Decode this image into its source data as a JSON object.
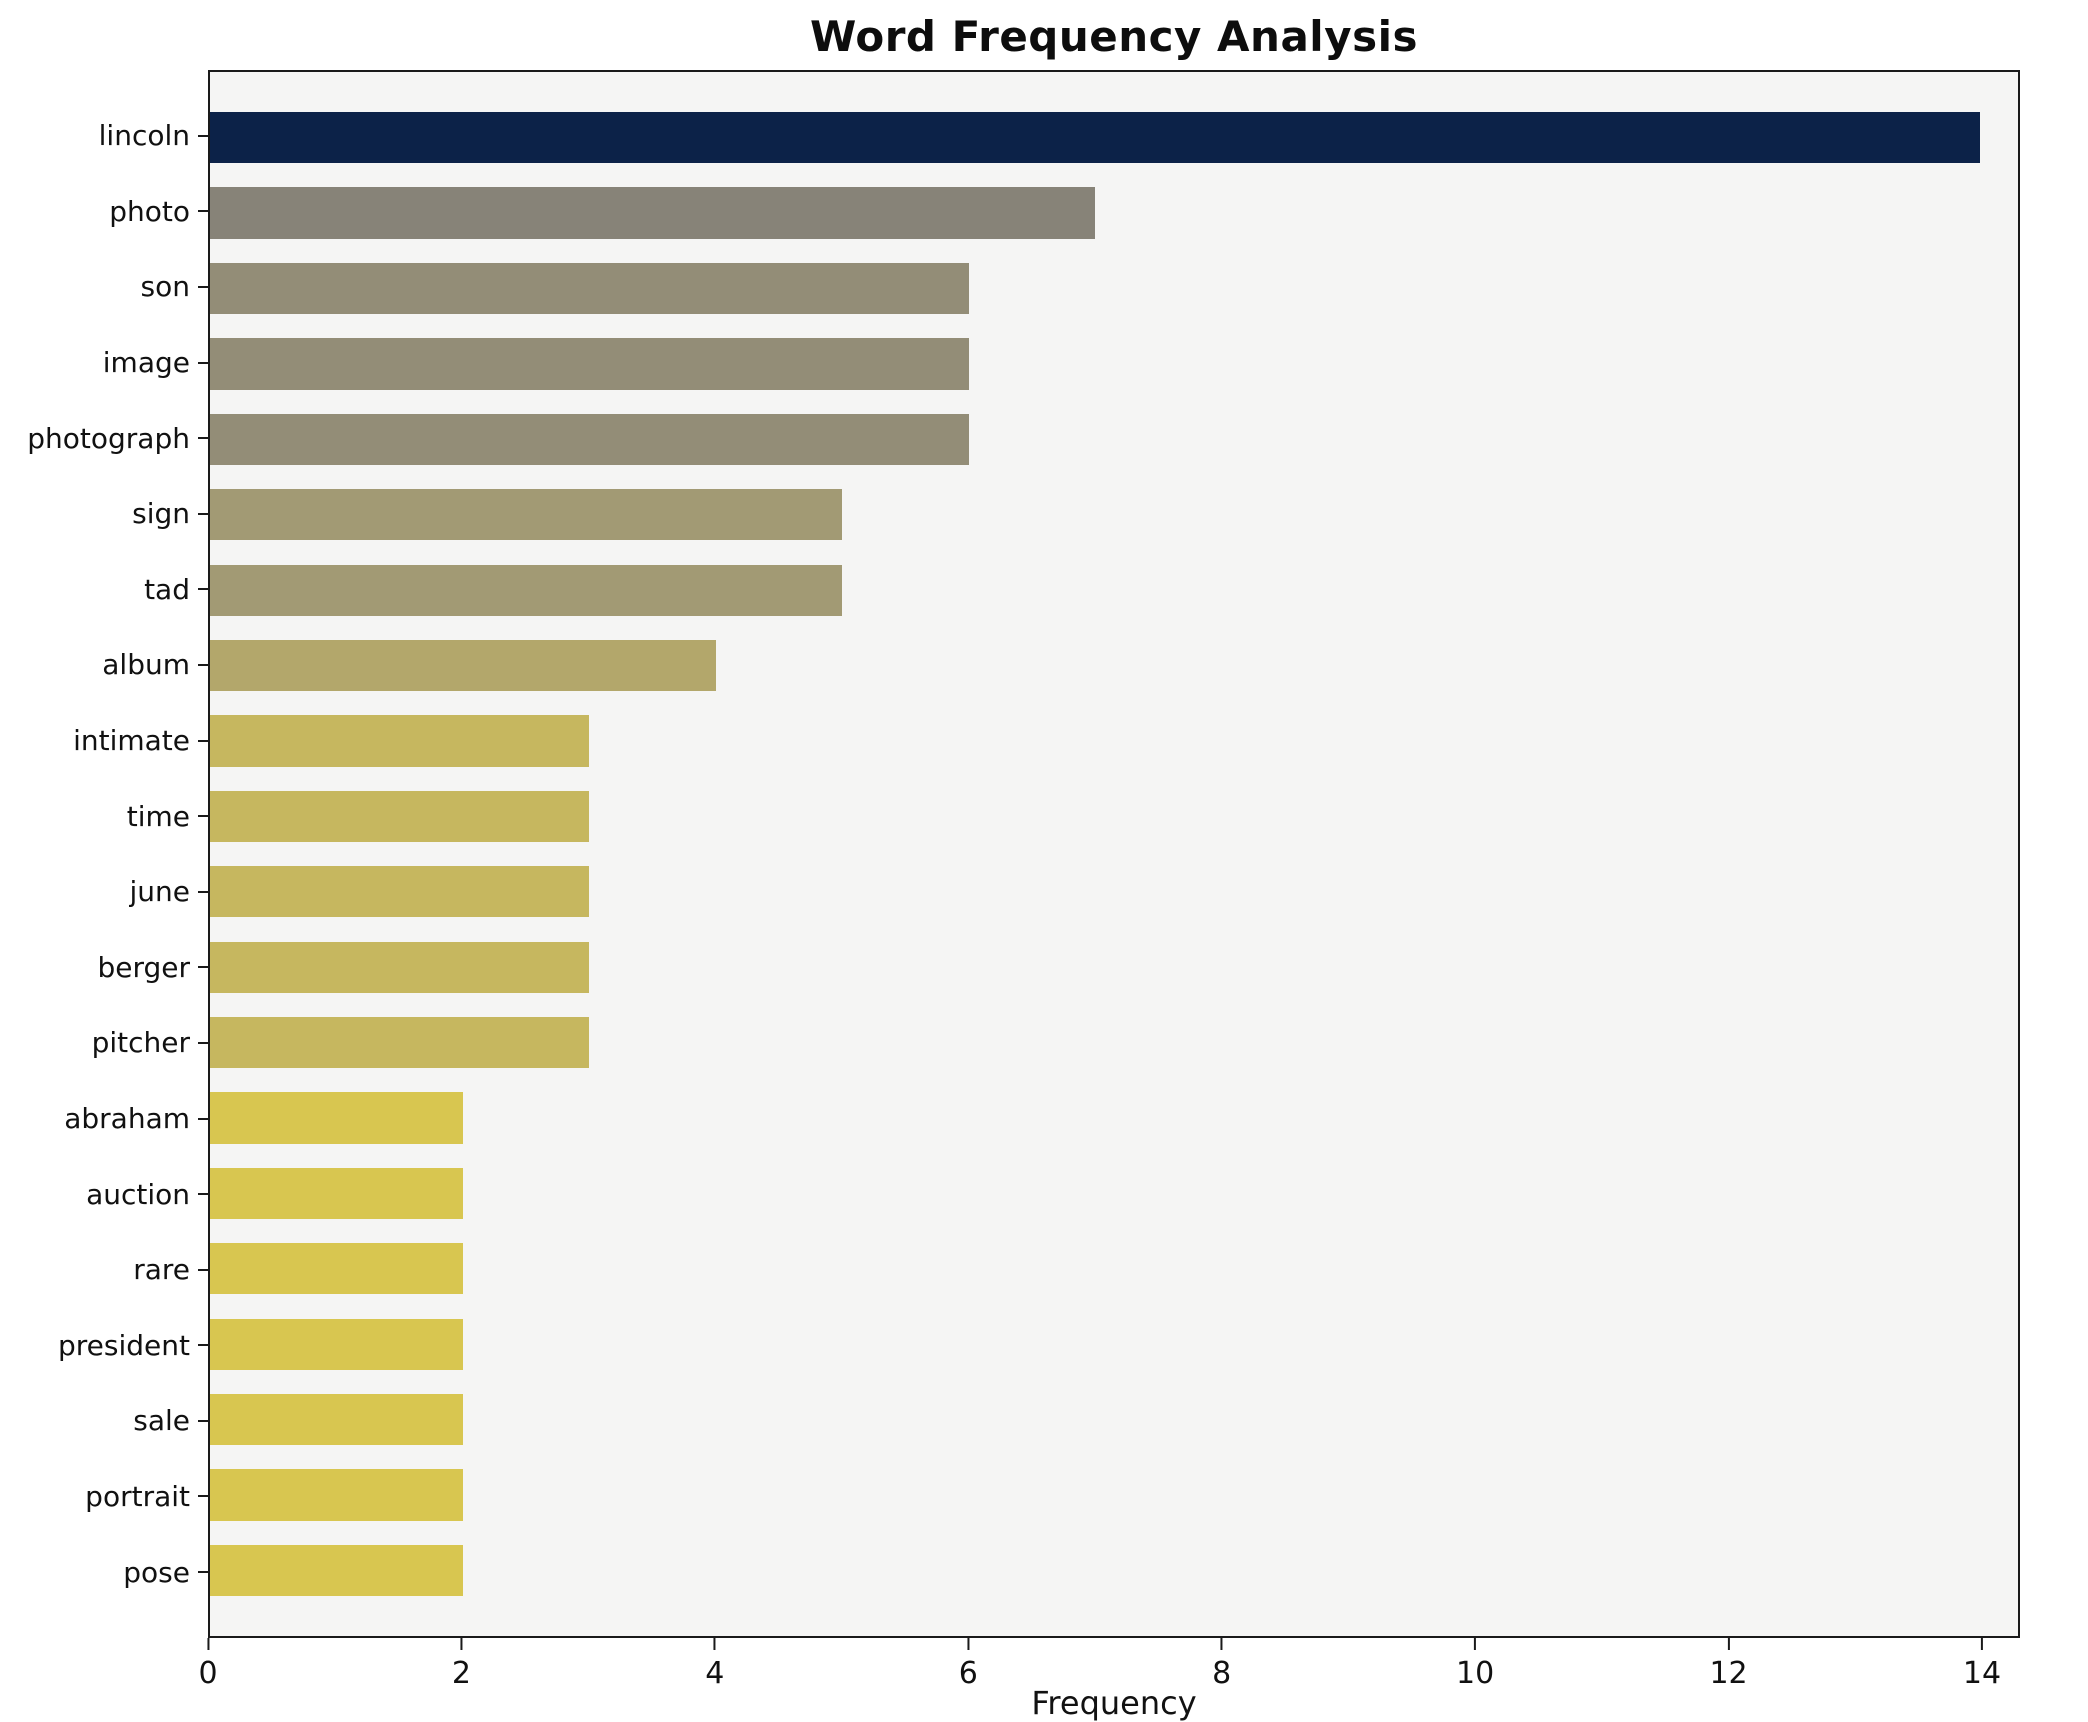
{
  "chart_data": {
    "type": "bar",
    "orientation": "horizontal",
    "title": "Word Frequency Analysis",
    "xlabel": "Frequency",
    "ylabel": "",
    "categories": [
      "lincoln",
      "photo",
      "son",
      "image",
      "photograph",
      "sign",
      "tad",
      "album",
      "intimate",
      "time",
      "june",
      "berger",
      "pitcher",
      "abraham",
      "auction",
      "rare",
      "president",
      "sale",
      "portrait",
      "pose"
    ],
    "values": [
      14,
      7,
      6,
      6,
      6,
      5,
      5,
      4,
      3,
      3,
      3,
      3,
      3,
      2,
      2,
      2,
      2,
      2,
      2,
      2
    ],
    "bar_colors": [
      "#0c2248",
      "#878378",
      "#938d77",
      "#938d77",
      "#938d77",
      "#a29a74",
      "#a29a74",
      "#b3a76b",
      "#c6b75f",
      "#c6b75f",
      "#c6b75f",
      "#c6b75f",
      "#c6b75f",
      "#d8c650",
      "#d8c650",
      "#d8c650",
      "#d8c650",
      "#d8c650",
      "#d8c650",
      "#d8c650"
    ],
    "xlim": [
      0,
      14.3
    ],
    "xticks": [
      0,
      2,
      4,
      6,
      8,
      10,
      12,
      14
    ],
    "grid": false,
    "legend": "none",
    "colormap": "cividis",
    "plot_background": "#f5f5f4",
    "figure_background": "#ffffff"
  }
}
